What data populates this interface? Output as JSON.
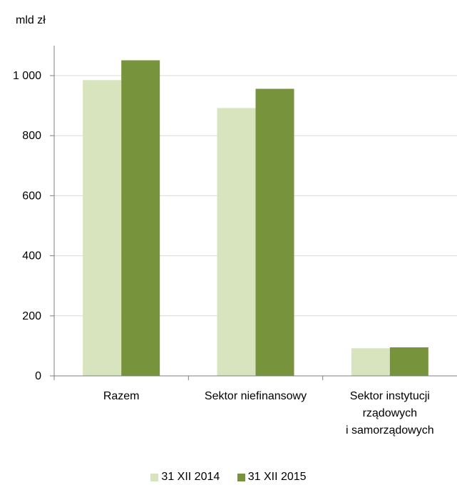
{
  "chart_data": {
    "type": "bar",
    "ylabel": "mld zł",
    "ylim": [
      0,
      1100
    ],
    "yticks": [
      0,
      200,
      400,
      600,
      800,
      1000
    ],
    "ytick_labels": [
      "0",
      "200",
      "400",
      "600",
      "800",
      "1 000"
    ],
    "grid": true,
    "legend_position": "bottom",
    "categories": [
      [
        "Razem"
      ],
      [
        "Sektor niefinansowy"
      ],
      [
        "Sektor instytucji",
        "rządowych",
        "i samorządowych"
      ]
    ],
    "series": [
      {
        "name": "31 XII 2014",
        "color": "#d7e4bd",
        "values": [
          985,
          892,
          92
        ]
      },
      {
        "name": "31 XII 2015",
        "color": "#77933c",
        "values": [
          1051,
          956,
          95
        ]
      }
    ]
  }
}
